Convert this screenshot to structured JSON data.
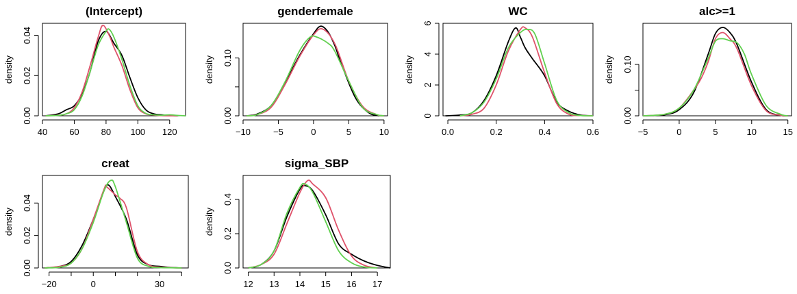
{
  "figure": {
    "colors": {
      "chain1": "#000000",
      "chain2": "#DF536B",
      "chain3": "#61D04F"
    }
  },
  "chart_data": [
    {
      "type": "line",
      "title": "(Intercept)",
      "xlabel": "",
      "ylabel": "density",
      "xlim": [
        40,
        130
      ],
      "ylim": [
        0,
        0.046
      ],
      "xticks": [
        40,
        60,
        80,
        100,
        120
      ],
      "xtick_labels": [
        "40",
        "60",
        "80",
        "100",
        "120"
      ],
      "yticks": [
        0,
        0.02,
        0.04
      ],
      "ytick_labels": [
        "0.00",
        "0.02",
        "0.04"
      ],
      "series": [
        {
          "color": "#000000",
          "x": [
            42,
            50,
            55,
            60,
            65,
            70,
            75,
            80,
            85,
            90,
            95,
            100,
            105,
            110,
            115,
            120,
            125
          ],
          "y": [
            0,
            0.001,
            0.003,
            0.005,
            0.011,
            0.022,
            0.037,
            0.042,
            0.036,
            0.03,
            0.019,
            0.009,
            0.003,
            0.001,
            0.0005,
            0.0002,
            0
          ]
        },
        {
          "color": "#DF536B",
          "x": [
            42,
            50,
            55,
            60,
            65,
            70,
            75,
            78,
            82,
            85,
            90,
            95,
            100,
            105,
            110,
            115,
            120,
            125
          ],
          "y": [
            0,
            0.0003,
            0.001,
            0.004,
            0.012,
            0.025,
            0.039,
            0.045,
            0.04,
            0.034,
            0.025,
            0.013,
            0.004,
            0.001,
            0.0004,
            0.0001,
            0,
            0
          ]
        },
        {
          "color": "#61D04F",
          "x": [
            42,
            50,
            55,
            60,
            65,
            70,
            75,
            80,
            82,
            85,
            90,
            95,
            100,
            105,
            110,
            115,
            120,
            125,
            130
          ],
          "y": [
            0,
            0.0002,
            0.001,
            0.003,
            0.01,
            0.022,
            0.035,
            0.042,
            0.043,
            0.039,
            0.028,
            0.015,
            0.005,
            0.0012,
            0.0005,
            0.0003,
            0.0005,
            0.0002,
            0
          ]
        }
      ]
    },
    {
      "type": "line",
      "title": "genderfemale",
      "xlabel": "",
      "ylabel": "density",
      "xlim": [
        -10,
        10.5
      ],
      "ylim": [
        0,
        0.16
      ],
      "xticks": [
        -10,
        -5,
        0,
        5,
        10
      ],
      "xtick_labels": [
        "−10",
        "−5",
        "0",
        "5",
        "10"
      ],
      "yticks": [
        0,
        0.05,
        0.1
      ],
      "ytick_labels": [
        "0.00",
        "",
        "0.10"
      ],
      "series": [
        {
          "color": "#000000",
          "x": [
            -9.5,
            -8,
            -6,
            -4,
            -2,
            0,
            1,
            2,
            3,
            4,
            6,
            8,
            10
          ],
          "y": [
            0,
            0.003,
            0.018,
            0.058,
            0.104,
            0.142,
            0.155,
            0.146,
            0.122,
            0.088,
            0.03,
            0.004,
            0
          ]
        },
        {
          "color": "#DF536B",
          "x": [
            -9.5,
            -8,
            -6,
            -4,
            -2,
            0,
            1.3,
            3,
            5,
            7,
            9,
            10
          ],
          "y": [
            0,
            0.002,
            0.015,
            0.055,
            0.102,
            0.14,
            0.15,
            0.125,
            0.06,
            0.016,
            0.002,
            0
          ]
        },
        {
          "color": "#61D04F",
          "x": [
            -9.5,
            -8,
            -6,
            -4,
            -2,
            -0.5,
            0.5,
            2,
            3,
            5,
            7,
            9,
            10
          ],
          "y": [
            0,
            0.002,
            0.018,
            0.06,
            0.112,
            0.136,
            0.136,
            0.126,
            0.112,
            0.06,
            0.014,
            0.002,
            0
          ]
        }
      ]
    },
    {
      "type": "line",
      "title": "WC",
      "xlabel": "",
      "ylabel": "density",
      "xlim": [
        -0.02,
        0.6
      ],
      "ylim": [
        0,
        6
      ],
      "xticks": [
        0,
        0.2,
        0.4,
        0.6
      ],
      "xtick_labels": [
        "0.0",
        "0.2",
        "0.4",
        "0.6"
      ],
      "yticks": [
        0,
        2,
        4,
        6
      ],
      "ytick_labels": [
        "0",
        "2",
        "4",
        "6"
      ],
      "series": [
        {
          "color": "#000000",
          "x": [
            -0.01,
            0.05,
            0.1,
            0.15,
            0.2,
            0.25,
            0.28,
            0.3,
            0.32,
            0.35,
            0.4,
            0.45,
            0.5,
            0.55,
            0.6
          ],
          "y": [
            0,
            0.05,
            0.2,
            1.0,
            2.6,
            4.8,
            5.7,
            5.1,
            4.4,
            3.7,
            2.6,
            0.9,
            0.3,
            0.05,
            0
          ]
        },
        {
          "color": "#DF536B",
          "x": [
            0.05,
            0.1,
            0.15,
            0.2,
            0.25,
            0.3,
            0.32,
            0.35,
            0.4,
            0.45,
            0.5,
            0.55,
            0.6
          ],
          "y": [
            0,
            0.1,
            0.5,
            2.0,
            4.2,
            5.6,
            5.7,
            5.1,
            2.8,
            0.8,
            0.1,
            0.02,
            0
          ]
        },
        {
          "color": "#61D04F",
          "x": [
            0.05,
            0.1,
            0.15,
            0.2,
            0.25,
            0.3,
            0.33,
            0.36,
            0.4,
            0.45,
            0.5,
            0.55,
            0.6
          ],
          "y": [
            0,
            0.2,
            0.9,
            2.4,
            4.4,
            5.4,
            5.6,
            5.3,
            3.4,
            1.0,
            0.2,
            0.02,
            0
          ]
        }
      ]
    },
    {
      "type": "line",
      "title": "alc>=1",
      "xlabel": "",
      "ylabel": "density",
      "xlim": [
        -5,
        15.5
      ],
      "ylim": [
        0,
        0.18
      ],
      "xticks": [
        -5,
        0,
        5,
        10,
        15
      ],
      "xtick_labels": [
        "−5",
        "0",
        "5",
        "10",
        "15"
      ],
      "yticks": [
        0,
        0.05,
        0.1
      ],
      "ytick_labels": [
        "0.00",
        "",
        "0.10"
      ],
      "series": [
        {
          "color": "#000000",
          "x": [
            -5,
            -2,
            0,
            2,
            4,
            5,
            6,
            7,
            8,
            10,
            12,
            14,
            15
          ],
          "y": [
            0,
            0.002,
            0.012,
            0.045,
            0.12,
            0.16,
            0.172,
            0.162,
            0.138,
            0.065,
            0.012,
            0.001,
            0
          ]
        },
        {
          "color": "#DF536B",
          "x": [
            -5,
            -2,
            0,
            2,
            3,
            4,
            5,
            6,
            7,
            8,
            10,
            12,
            14,
            15
          ],
          "y": [
            0,
            0.003,
            0.015,
            0.05,
            0.072,
            0.105,
            0.15,
            0.162,
            0.15,
            0.13,
            0.058,
            0.01,
            0.001,
            0
          ]
        },
        {
          "color": "#61D04F",
          "x": [
            -5,
            -2,
            0,
            2,
            4,
            5,
            6,
            7,
            8,
            9,
            10,
            12,
            14,
            15
          ],
          "y": [
            0,
            0.003,
            0.015,
            0.05,
            0.112,
            0.145,
            0.15,
            0.146,
            0.142,
            0.12,
            0.08,
            0.02,
            0.003,
            0
          ]
        }
      ]
    },
    {
      "type": "line",
      "title": "creat",
      "xlabel": "",
      "ylabel": "density",
      "xlim": [
        -23,
        43
      ],
      "ylim": [
        0,
        0.057
      ],
      "xticks": [
        -20,
        -10,
        0,
        10,
        20,
        30,
        40
      ],
      "xtick_labels": [
        "−20",
        "",
        "0",
        "",
        "",
        "30",
        ""
      ],
      "yticks": [
        0,
        0.02,
        0.04
      ],
      "ytick_labels": [
        "0.00",
        "0.02",
        "0.04"
      ],
      "series": [
        {
          "color": "#000000",
          "x": [
            -22,
            -15,
            -10,
            -5,
            0,
            5,
            7,
            10,
            15,
            20,
            25,
            30,
            35,
            40
          ],
          "y": [
            0,
            0.001,
            0.004,
            0.014,
            0.03,
            0.048,
            0.051,
            0.044,
            0.03,
            0.008,
            0.002,
            0.001,
            0.0003,
            0
          ]
        },
        {
          "color": "#DF536B",
          "x": [
            -22,
            -15,
            -10,
            -5,
            0,
            5,
            6,
            10,
            12,
            15,
            20,
            25,
            30,
            35,
            40
          ],
          "y": [
            0,
            0.001,
            0.003,
            0.012,
            0.03,
            0.049,
            0.05,
            0.045,
            0.043,
            0.037,
            0.01,
            0.002,
            0.0005,
            0.0002,
            0
          ]
        },
        {
          "color": "#61D04F",
          "x": [
            -22,
            -15,
            -10,
            -5,
            0,
            5,
            8,
            10,
            15,
            20,
            25,
            30,
            35,
            40
          ],
          "y": [
            0,
            0.0005,
            0.003,
            0.012,
            0.028,
            0.048,
            0.054,
            0.05,
            0.028,
            0.006,
            0.001,
            0.0002,
            0.0001,
            0
          ]
        }
      ]
    },
    {
      "type": "line",
      "title": "sigma_SBP",
      "xlabel": "",
      "ylabel": "density",
      "xlim": [
        11.8,
        17.5
      ],
      "ylim": [
        0,
        0.54
      ],
      "xticks": [
        12,
        13,
        14,
        15,
        16,
        17
      ],
      "xtick_labels": [
        "12",
        "13",
        "14",
        "15",
        "16",
        "17"
      ],
      "yticks": [
        0,
        0.2,
        0.4
      ],
      "ytick_labels": [
        "0.0",
        "0.2",
        "0.4"
      ],
      "series": [
        {
          "color": "#000000",
          "x": [
            12,
            12.5,
            13,
            13.5,
            14,
            14.2,
            14.5,
            15,
            15.5,
            16,
            16.5,
            17,
            17.5
          ],
          "y": [
            0,
            0.02,
            0.1,
            0.3,
            0.46,
            0.48,
            0.45,
            0.31,
            0.14,
            0.08,
            0.04,
            0.015,
            0
          ]
        },
        {
          "color": "#DF536B",
          "x": [
            12,
            12.5,
            13,
            13.5,
            14,
            14.3,
            14.5,
            15,
            15.5,
            16,
            16.5,
            17
          ],
          "y": [
            0,
            0.02,
            0.08,
            0.26,
            0.44,
            0.51,
            0.49,
            0.41,
            0.22,
            0.07,
            0.015,
            0
          ]
        },
        {
          "color": "#61D04F",
          "x": [
            12,
            12.5,
            13,
            13.5,
            14,
            14.2,
            14.5,
            15,
            15.5,
            16,
            16.5,
            17
          ],
          "y": [
            0,
            0.02,
            0.1,
            0.32,
            0.47,
            0.49,
            0.44,
            0.27,
            0.1,
            0.03,
            0.005,
            0
          ]
        }
      ]
    }
  ]
}
